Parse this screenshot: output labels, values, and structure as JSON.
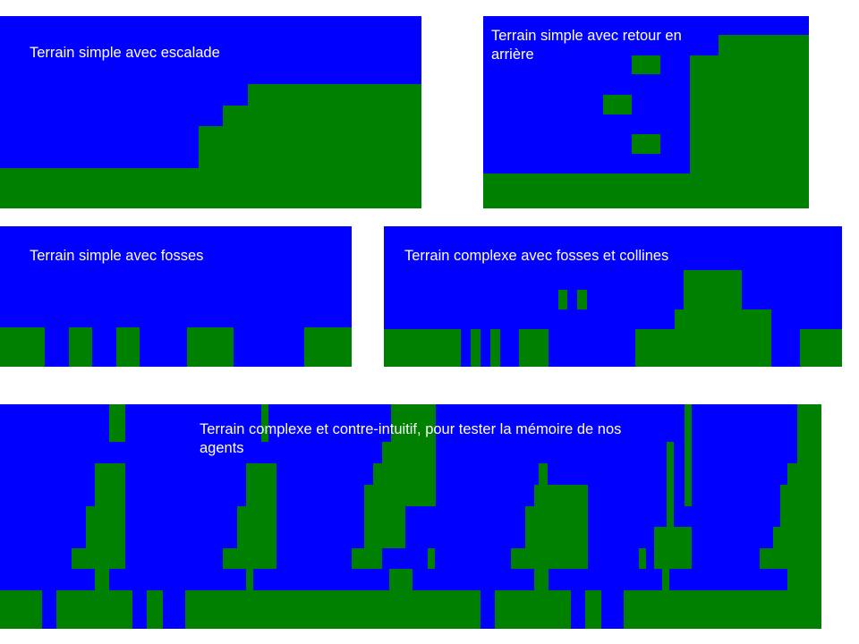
{
  "colors": {
    "sky": "#0000ff",
    "ground": "#008000",
    "text": "#ffffff"
  },
  "panels": [
    {
      "key": "p1",
      "title": "Terrain simple avec escalade"
    },
    {
      "key": "p2",
      "title": "Terrain simple avec retour en arrière"
    },
    {
      "key": "p3",
      "title": "Terrain simple avec fosses"
    },
    {
      "key": "p4",
      "title": "Terrain complexe avec fosses et collines"
    },
    {
      "key": "p5",
      "title": "Terrain complexe et contre-intuitif, pour tester la mémoire de nos agents"
    }
  ]
}
